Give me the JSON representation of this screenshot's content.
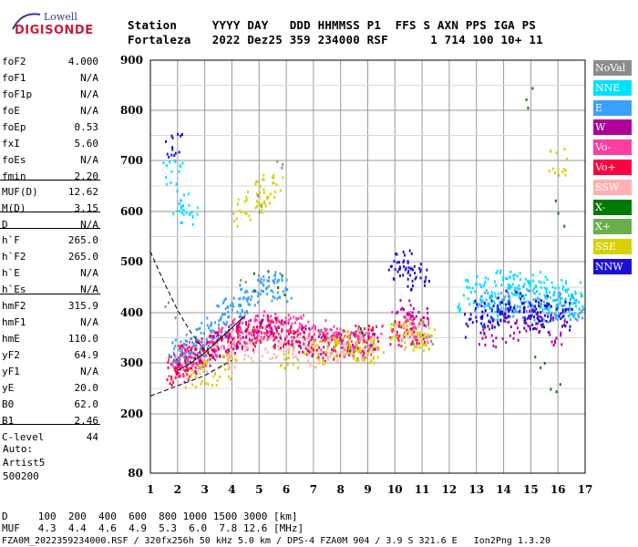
{
  "logo": {
    "top": "Lowell",
    "bottom": "DIGISONDE"
  },
  "header": {
    "line1": "Station     YYYY DAY   DDD HHMMSS P1  FFS S AXN PPS IGA PS",
    "line2": "Fortaleza   2022 Dez25 359 234000 RSF      1 714 100 10+ 11"
  },
  "params": [
    {
      "label": "foF2",
      "value": "4.000"
    },
    {
      "label": "foF1",
      "value": "N/A"
    },
    {
      "label": "foF1p",
      "value": "N/A"
    },
    {
      "label": "foE",
      "value": "N/A"
    },
    {
      "label": "foEp",
      "value": "0.53"
    },
    {
      "label": "fxI",
      "value": "5.60"
    },
    {
      "label": "foEs",
      "value": "N/A"
    },
    {
      "label": "fmin",
      "value": "2.20"
    },
    {
      "label": "MUF(D)",
      "value": "12.62"
    },
    {
      "label": "M(D)",
      "value": "3.15"
    },
    {
      "label": "D",
      "value": "N/A"
    },
    {
      "label": "h`F",
      "value": "265.0"
    },
    {
      "label": "h`F2",
      "value": "265.0"
    },
    {
      "label": "h`E",
      "value": "N/A"
    },
    {
      "label": "h`Es",
      "value": "N/A"
    },
    {
      "label": "hmF2",
      "value": "315.9"
    },
    {
      "label": "hmF1",
      "value": "N/A"
    },
    {
      "label": "hmE",
      "value": "110.0"
    },
    {
      "label": "yF2",
      "value": "64.9"
    },
    {
      "label": "yF1",
      "value": "N/A"
    },
    {
      "label": "yE",
      "value": "20.0"
    },
    {
      "label": "B0",
      "value": "62.0"
    },
    {
      "label": "B1",
      "value": "2.46"
    },
    {
      "label": "C-level",
      "value": "44"
    }
  ],
  "auto": {
    "line1": "Auto:",
    "line2": "Artist5",
    "line3": "500200"
  },
  "legend": [
    {
      "label": "NoVal",
      "color": "#8c8c8c"
    },
    {
      "label": "NNE",
      "color": "#00e0ff"
    },
    {
      "label": "E",
      "color": "#3aa0ff"
    },
    {
      "label": "W",
      "color": "#b0009a"
    },
    {
      "label": "Vo-",
      "color": "#ff3ca0"
    },
    {
      "label": "Vo+",
      "color": "#ff0040"
    },
    {
      "label": "SSW",
      "color": "#ffb0b0"
    },
    {
      "label": "X-",
      "color": "#007a00"
    },
    {
      "label": "X+",
      "color": "#6ab04a"
    },
    {
      "label": "SSE",
      "color": "#d8d000"
    },
    {
      "label": "NNW",
      "color": "#1c10d8"
    }
  ],
  "footer": {
    "line1": "D     100  200  400  600  800 1000 1500 3000 [km]",
    "line2": "MUF   4.3  4.4  4.6  4.9  5.3  6.0  7.8 12.6 [MHz]",
    "line3": "FZA0M_2022359234000.RSF / 320fx256h 50 kHz 5.0 km / DPS-4 FZA0M 904 / 3.9 S 321.6 E   Ion2Png 1.3.20"
  },
  "chart_data": {
    "type": "scatter",
    "title": "",
    "xlabel": "",
    "ylabel": "",
    "xlim": [
      1,
      17
    ],
    "ylim": [
      80,
      900
    ],
    "x_ticks": [
      1,
      2,
      3,
      4,
      5,
      6,
      7,
      8,
      9,
      10,
      11,
      12,
      13,
      14,
      15,
      16,
      17
    ],
    "y_ticks": [
      80,
      200,
      300,
      400,
      500,
      600,
      700,
      800,
      900
    ],
    "grid": true,
    "legend_position": "right",
    "series": [
      {
        "name": "Vo+",
        "color": "#ff0040",
        "x": [
          1.9,
          2.0,
          2.1,
          2.2,
          2.4,
          2.6,
          2.8,
          3.0,
          3.3,
          3.6,
          3.9,
          4.2,
          4.5,
          4.8,
          5.1,
          5.4,
          5.7,
          5.9,
          6.2,
          6.5,
          6.8,
          7.2,
          7.6,
          8.0,
          8.4,
          8.8,
          9.2,
          10.1,
          10.4,
          10.8
        ],
        "y": [
          290,
          285,
          295,
          300,
          310,
          315,
          320,
          325,
          330,
          340,
          345,
          350,
          355,
          360,
          365,
          370,
          360,
          355,
          350,
          345,
          340,
          335,
          330,
          340,
          345,
          350,
          355,
          360,
          370,
          365
        ]
      },
      {
        "name": "Vo-",
        "color": "#ff3ca0",
        "x": [
          2.0,
          2.3,
          2.7,
          3.1,
          3.5,
          3.9,
          4.3,
          4.7,
          5.1,
          5.5,
          5.9,
          6.3,
          6.7,
          7.1,
          7.5,
          7.9,
          8.3,
          8.7,
          9.1,
          10.2,
          10.6,
          11.0
        ],
        "y": [
          300,
          310,
          320,
          330,
          345,
          355,
          365,
          370,
          375,
          380,
          375,
          370,
          365,
          360,
          355,
          350,
          345,
          340,
          335,
          380,
          375,
          370
        ]
      },
      {
        "name": "E",
        "color": "#3aa0ff",
        "x": [
          2.0,
          2.2,
          2.5,
          2.8,
          3.1,
          3.4,
          3.7,
          4.0,
          4.3,
          4.6,
          4.9,
          5.2,
          5.5,
          5.8,
          13.2,
          13.5,
          13.8,
          14.1,
          14.4,
          14.7,
          15.0,
          15.3,
          15.6,
          15.9,
          16.2,
          16.5,
          16.8
        ],
        "y": [
          320,
          325,
          335,
          345,
          360,
          375,
          390,
          405,
          420,
          430,
          440,
          450,
          455,
          450,
          420,
          415,
          410,
          420,
          425,
          430,
          415,
          420,
          410,
          415,
          420,
          415,
          410
        ]
      },
      {
        "name": "NNE",
        "color": "#00e0ff",
        "x": [
          1.8,
          2.1,
          2.4,
          12.6,
          12.9,
          13.3,
          13.6,
          14.0,
          14.3,
          14.6,
          15.0,
          15.3,
          15.7,
          16.0,
          16.3,
          16.6
        ],
        "y": [
          680,
          620,
          600,
          430,
          440,
          450,
          420,
          460,
          470,
          450,
          440,
          460,
          430,
          450,
          420,
          440
        ]
      },
      {
        "name": "NNW",
        "color": "#1c10d8",
        "x": [
          1.9,
          10.1,
          10.3,
          10.6,
          10.9,
          12.9,
          13.2,
          13.5,
          13.8,
          14.1,
          14.4,
          14.7,
          15.0,
          15.3,
          15.6,
          15.9,
          16.2
        ],
        "y": [
          730,
          490,
          500,
          480,
          470,
          380,
          400,
          390,
          410,
          400,
          420,
          395,
          405,
          390,
          400,
          410,
          395
        ]
      },
      {
        "name": "W",
        "color": "#b0009a",
        "x": [
          2.3,
          2.9,
          3.5,
          4.1,
          4.7,
          5.3,
          5.9,
          6.5,
          7.1,
          8.2,
          8.9,
          10.3,
          10.8,
          13.4,
          14.2,
          15.1,
          15.9
        ],
        "y": [
          305,
          320,
          340,
          355,
          365,
          370,
          360,
          350,
          345,
          340,
          335,
          400,
          395,
          360,
          370,
          380,
          365
        ]
      },
      {
        "name": "SSW",
        "color": "#ffb0b0",
        "x": [
          3.0,
          3.6,
          4.2,
          4.8,
          5.4,
          6.0,
          6.6,
          7.2,
          7.8,
          8.4,
          9.0,
          10.5
        ],
        "y": [
          300,
          310,
          320,
          330,
          335,
          340,
          330,
          325,
          320,
          330,
          335,
          350
        ]
      },
      {
        "name": "SSE",
        "color": "#d8d000",
        "x": [
          2.6,
          3.2,
          3.8,
          4.4,
          4.8,
          5.2,
          5.5,
          6.1,
          7.0,
          7.7,
          8.1,
          8.5,
          8.9,
          9.2,
          10.1,
          10.6,
          10.9,
          11.1,
          16.0
        ],
        "y": [
          280,
          285,
          295,
          600,
          640,
          620,
          650,
          310,
          320,
          330,
          340,
          335,
          330,
          325,
          360,
          355,
          350,
          345,
          700
        ]
      },
      {
        "name": "X-",
        "color": "#007a00",
        "x": [
          5.0,
          5.6,
          8.5,
          15.0,
          15.2,
          15.9,
          16.0
        ],
        "y": [
          470,
          460,
          350,
          820,
          300,
          240,
          600
        ]
      },
      {
        "name": "X+",
        "color": "#6ab04a",
        "x": [
          4.6,
          5.3,
          7.4,
          8.7,
          10.8,
          11.0
        ],
        "y": [
          450,
          440,
          355,
          345,
          360,
          350
        ]
      },
      {
        "name": "NoVal",
        "color": "#8c8c8c",
        "x": [
          1.7,
          4.7,
          5.5
        ],
        "y": [
          410,
          620,
          690
        ]
      }
    ],
    "curves": [
      {
        "name": "dashed",
        "x": [
          1.0,
          1.5,
          2.0,
          2.5,
          3.0,
          3.5
        ],
        "y": [
          520,
          460,
          405,
          360,
          325,
          300
        ]
      },
      {
        "name": "dashed",
        "x": [
          1.0,
          1.5,
          2.0,
          2.5,
          3.0,
          3.5,
          4.0
        ],
        "y": [
          235,
          245,
          255,
          265,
          275,
          290,
          305
        ]
      },
      {
        "name": "solid",
        "x": [
          2.0,
          2.5,
          3.0,
          3.5,
          4.0,
          4.5
        ],
        "y": [
          285,
          300,
          320,
          345,
          370,
          395
        ]
      }
    ]
  }
}
